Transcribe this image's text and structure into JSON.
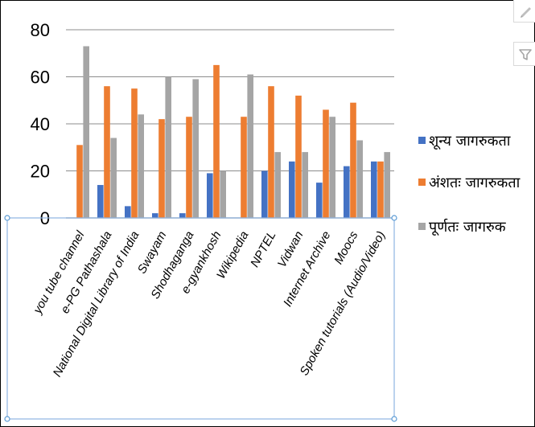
{
  "chart_data": {
    "type": "bar",
    "categories": [
      "you tube channel",
      "e-PG Pathashala",
      "National Digital Library of India",
      "Swayam",
      "Shodhaganga",
      "e-gyankhosh",
      "Wikipedia",
      "NPTEL",
      "Vidwan",
      "Internet Archive",
      "Moocs",
      "Spoken tutorials (Audio/Video)"
    ],
    "series": [
      {
        "name": "शून्य जागरुकता",
        "color": "#4472c4",
        "values": [
          0,
          14,
          5,
          2,
          2,
          19,
          0,
          20,
          24,
          15,
          22,
          24
        ]
      },
      {
        "name": "अंशतः जागरुकता",
        "color": "#ed7d31",
        "values": [
          31,
          56,
          55,
          42,
          43,
          65,
          43,
          56,
          52,
          46,
          49,
          24
        ]
      },
      {
        "name": "पूर्णतः जागरुक",
        "color": "#a5a5a5",
        "values": [
          73,
          34,
          44,
          60,
          59,
          20,
          61,
          28,
          28,
          43,
          33,
          28
        ]
      }
    ],
    "ylim": [
      0,
      80
    ],
    "yticks": [
      0,
      20,
      40,
      60,
      80
    ],
    "grid": true,
    "legend_position": "right"
  },
  "ui": {
    "icons": [
      "pencil-icon",
      "funnel-icon"
    ]
  }
}
